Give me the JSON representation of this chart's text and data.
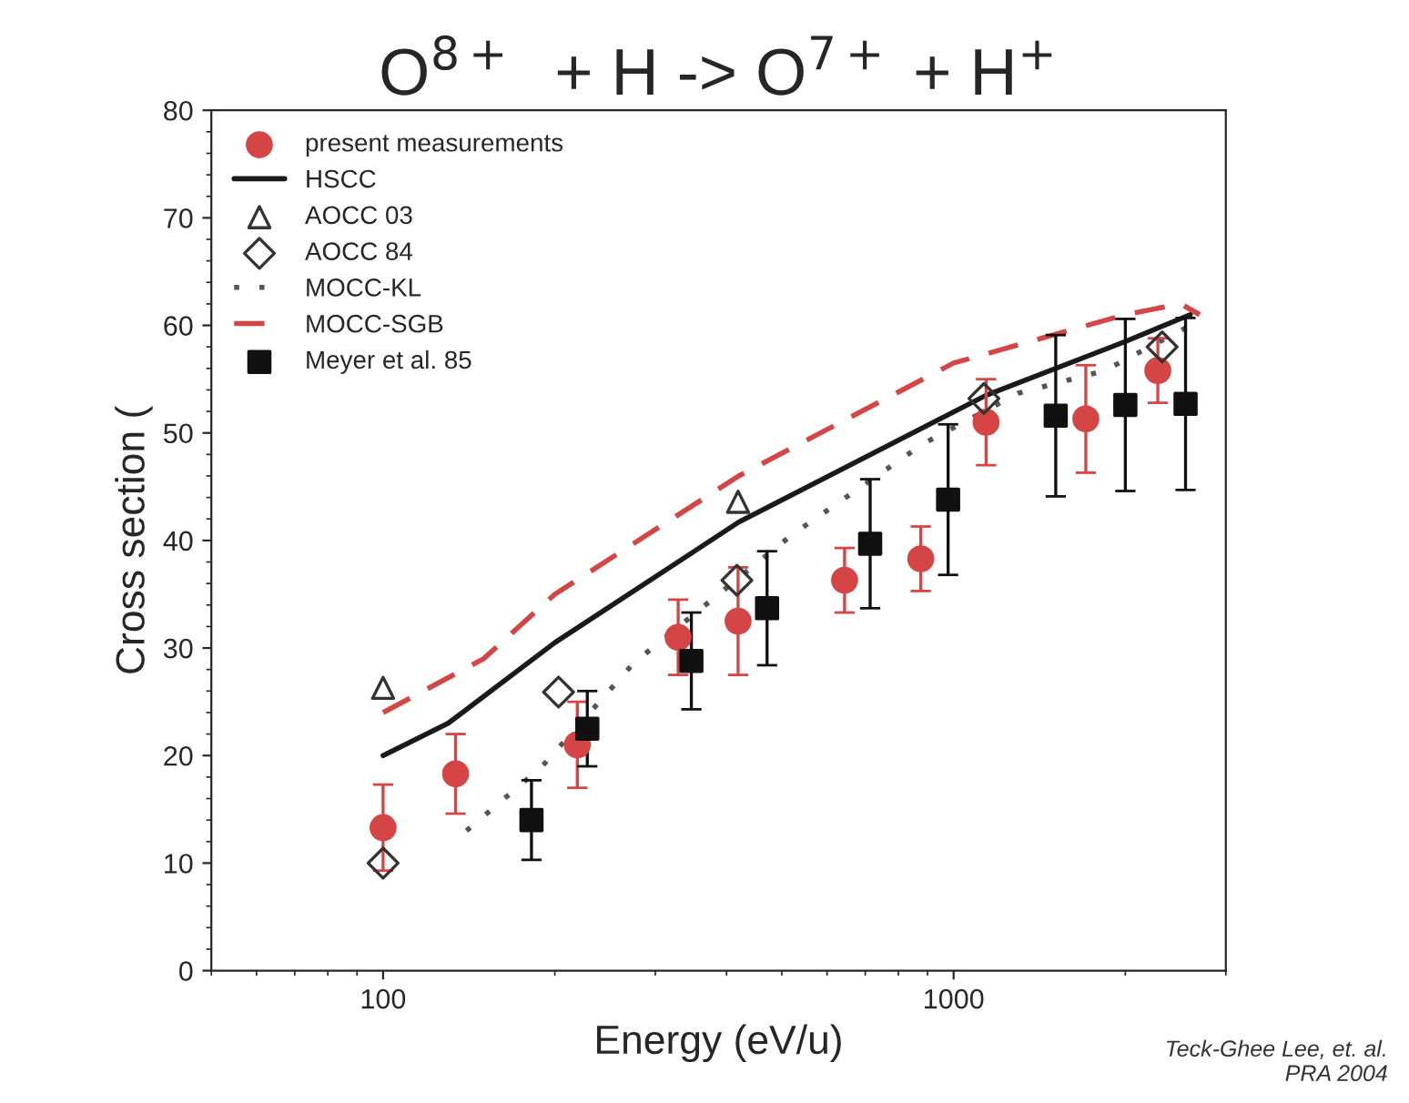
{
  "chart_data": {
    "type": "scatter",
    "title": "O$^{8+}$  + H -> O$^{7+}$ + H$^{+}$",
    "xlabel": "Energy (eV/u)",
    "ylabel": "Cross section (",
    "log": "x",
    "xlim": [
      50,
      3000
    ],
    "xticks": [
      100,
      1000
    ],
    "ylim": [
      0,
      80
    ],
    "yticks": [
      0,
      10,
      20,
      30,
      40,
      50,
      60,
      70,
      80
    ],
    "grid": false,
    "legend": "top left",
    "series": [
      {
        "name": "present measurements",
        "marker": "circle",
        "color": "#d64545",
        "x": [
          100,
          134,
          219,
          329,
          419,
          644,
          876,
          1140,
          1705,
          2280
        ],
        "values": [
          13.3,
          18.3,
          21,
          31,
          32.5,
          36.3,
          38.3,
          51,
          51.3,
          55.8
        ],
        "errors": [
          4,
          3.7,
          4,
          3.5,
          5,
          3,
          3,
          4,
          5,
          3
        ]
      },
      {
        "name": "HSCC",
        "type": "line",
        "line_style": "solid",
        "color": "#1a1a1a",
        "x": [
          100,
          130,
          200,
          420,
          1140,
          2000,
          2600
        ],
        "values": [
          20,
          23,
          30.5,
          41.7,
          53.5,
          58.5,
          61
        ]
      },
      {
        "name": "AOCC 03",
        "marker": "triangle",
        "color": "#333333",
        "x": [
          100,
          419
        ],
        "values": [
          26.3,
          43.6
        ]
      },
      {
        "name": "AOCC 84",
        "marker": "diamond",
        "color": "#333333",
        "x": [
          100,
          203,
          417,
          1130,
          2320
        ],
        "values": [
          10,
          25.9,
          36.3,
          53.2,
          58
        ]
      },
      {
        "name": "MOCC-KL",
        "type": "line",
        "line_style": "dotted",
        "color": "#555555",
        "x": [
          140,
          190,
          275,
          520,
          885,
          1300,
          1840,
          2600
        ],
        "values": [
          13,
          19,
          28.6,
          40.5,
          49,
          53.7,
          55.8,
          60
        ]
      },
      {
        "name": "MOCC-SGB",
        "type": "line",
        "line_style": "dashed",
        "color": "#d64545",
        "x": [
          100,
          150,
          200,
          420,
          1000,
          2000,
          2500,
          2700
        ],
        "values": [
          24,
          29,
          35,
          46,
          56.5,
          61,
          62,
          61
        ]
      },
      {
        "name": "Meyer et al. 85",
        "marker": "square",
        "color": "#111111",
        "x": [
          182,
          228,
          347,
          471,
          714,
          978,
          1510,
          2000,
          2550
        ],
        "values": [
          14,
          22.5,
          28.8,
          33.7,
          39.7,
          43.8,
          51.6,
          52.6,
          52.7
        ],
        "errors": [
          3.7,
          3.5,
          4.5,
          5.3,
          6,
          7,
          7.5,
          8,
          8
        ]
      }
    ],
    "annotations": [
      "Teck-Ghee Lee, et. al.\nPRA 2004"
    ]
  }
}
